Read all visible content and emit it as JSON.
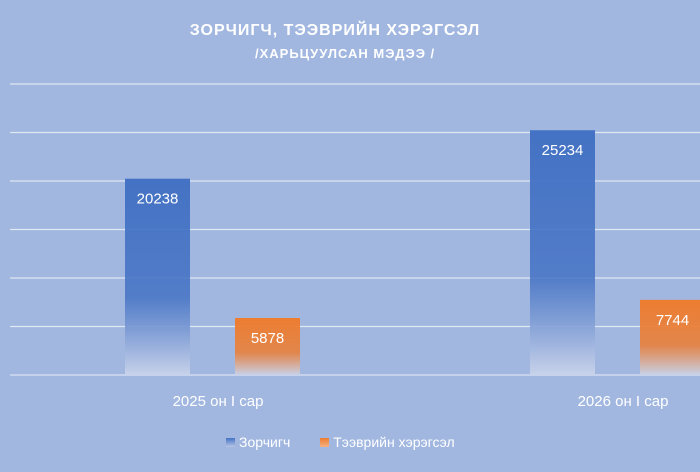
{
  "chart_data": {
    "type": "bar",
    "title": "ЗОРЧИГЧ,  ТЭЭВРИЙН ХЭРЭГСЭЛ",
    "subtitle": "/ХАРЬЦУУЛСАН МЭДЭЭ /",
    "categories": [
      "2025 он I сар",
      "2026 он I сар"
    ],
    "series": [
      {
        "name": "Зорчигч",
        "values": [
          20238,
          25234
        ],
        "color": "#4472c4"
      },
      {
        "name": "Тээврийн хэрэгсэл",
        "values": [
          5878,
          7744
        ],
        "color": "#ed7d31"
      }
    ],
    "ylim": [
      0,
      30000
    ],
    "ytick_step": 5000,
    "grid": true,
    "legend": "bottom",
    "xlabel": "",
    "ylabel": ""
  }
}
